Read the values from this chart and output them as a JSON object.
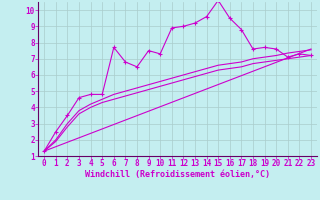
{
  "xlabel": "Windchill (Refroidissement éolien,°C)",
  "background_color": "#c4eef0",
  "grid_color": "#aacccc",
  "line_color": "#cc00cc",
  "border_color": "#660066",
  "xlim": [
    -0.5,
    23.5
  ],
  "ylim": [
    1,
    10.5
  ],
  "ytick_min": 1,
  "ytick_max": 10,
  "xticks": [
    0,
    1,
    2,
    3,
    4,
    5,
    6,
    7,
    8,
    9,
    10,
    11,
    12,
    13,
    14,
    15,
    16,
    17,
    18,
    19,
    20,
    21,
    22,
    23
  ],
  "yticks": [
    1,
    2,
    3,
    4,
    5,
    6,
    7,
    8,
    9,
    10
  ],
  "series1_x": [
    0,
    1,
    2,
    3,
    4,
    5,
    6,
    7,
    8,
    9,
    10,
    11,
    12,
    13,
    14,
    15,
    16,
    17,
    18,
    19,
    20,
    21,
    22,
    23
  ],
  "series1_y": [
    1.3,
    2.5,
    3.5,
    4.6,
    4.8,
    4.8,
    7.7,
    6.8,
    6.5,
    7.5,
    7.3,
    8.9,
    9.0,
    9.2,
    9.6,
    10.6,
    9.5,
    8.8,
    7.6,
    7.7,
    7.6,
    7.1,
    7.3,
    7.2
  ],
  "series2_x": [
    0,
    1,
    2,
    3,
    4,
    5,
    6,
    7,
    8,
    9,
    10,
    11,
    12,
    13,
    14,
    15,
    16,
    17,
    18,
    19,
    20,
    21,
    22,
    23
  ],
  "series2_y": [
    1.3,
    1.9,
    2.8,
    3.6,
    4.0,
    4.3,
    4.5,
    4.7,
    4.9,
    5.1,
    5.3,
    5.5,
    5.7,
    5.9,
    6.1,
    6.3,
    6.4,
    6.5,
    6.7,
    6.8,
    6.9,
    7.0,
    7.1,
    7.2
  ],
  "series3_x": [
    0,
    1,
    2,
    3,
    4,
    5,
    6,
    7,
    8,
    9,
    10,
    11,
    12,
    13,
    14,
    15,
    16,
    17,
    18,
    19,
    20,
    21,
    22,
    23
  ],
  "series3_y": [
    1.3,
    2.0,
    3.0,
    3.8,
    4.2,
    4.5,
    4.8,
    5.0,
    5.2,
    5.4,
    5.6,
    5.8,
    6.0,
    6.2,
    6.4,
    6.6,
    6.7,
    6.8,
    7.0,
    7.1,
    7.2,
    7.35,
    7.45,
    7.55
  ],
  "series4_x": [
    0,
    23
  ],
  "series4_y": [
    1.3,
    7.6
  ],
  "xlabel_fontsize": 6,
  "tick_fontsize": 5.5
}
